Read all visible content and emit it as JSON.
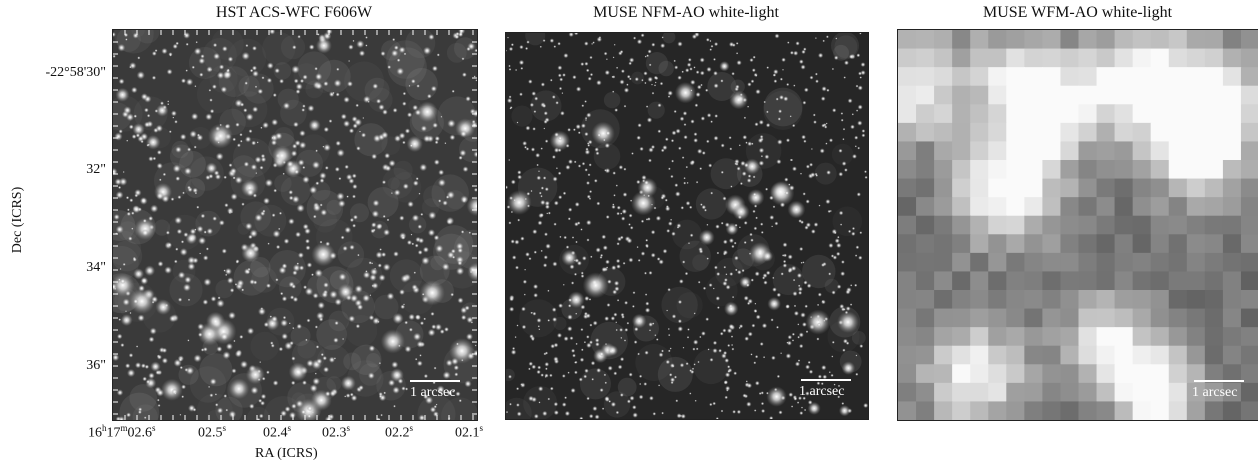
{
  "panels": [
    {
      "id": "hst",
      "title": "HST ACS-WFC F606W",
      "scalebar": "1 arcsec"
    },
    {
      "id": "nfm",
      "title": "MUSE NFM-AO white-light",
      "scalebar": "1 arcsec"
    },
    {
      "id": "wfm",
      "title": "MUSE WFM-AO white-light",
      "scalebar": "1 arcsec"
    }
  ],
  "axes": {
    "ylabel": "Dec (ICRS)",
    "xlabel": "RA (ICRS)",
    "yticks": [
      "-22°58'30\"",
      "32\"",
      "34\"",
      "36\""
    ],
    "xticks": {
      "first": {
        "h": "16",
        "m": "17",
        "s": "02.6"
      },
      "rest": [
        "02.5",
        "02.4",
        "02.3",
        "02.2",
        "02.1"
      ]
    }
  }
}
